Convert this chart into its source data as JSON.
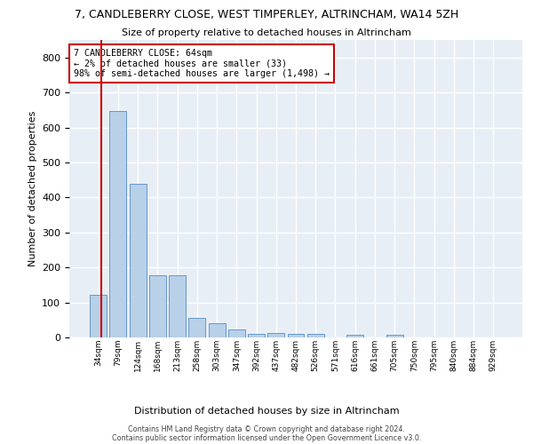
{
  "title": "7, CANDLEBERRY CLOSE, WEST TIMPERLEY, ALTRINCHAM, WA14 5ZH",
  "subtitle": "Size of property relative to detached houses in Altrincham",
  "xlabel": "Distribution of detached houses by size in Altrincham",
  "ylabel": "Number of detached properties",
  "bar_color": "#b8d0e8",
  "bar_edge_color": "#6699cc",
  "highlight_color": "#cc0000",
  "bg_color": "#e8eef5",
  "grid_color": "#ffffff",
  "categories": [
    "34sqm",
    "79sqm",
    "124sqm",
    "168sqm",
    "213sqm",
    "258sqm",
    "303sqm",
    "347sqm",
    "392sqm",
    "437sqm",
    "482sqm",
    "526sqm",
    "571sqm",
    "616sqm",
    "661sqm",
    "705sqm",
    "750sqm",
    "795sqm",
    "840sqm",
    "884sqm",
    "929sqm"
  ],
  "values": [
    122,
    647,
    440,
    178,
    178,
    57,
    40,
    22,
    11,
    13,
    11,
    9,
    0,
    8,
    0,
    8,
    0,
    0,
    0,
    0,
    0
  ],
  "annotation_line": "7 CANDLEBERRY CLOSE: 64sqm",
  "annotation_line2": "← 2% of detached houses are smaller (33)",
  "annotation_line3": "98% of semi-detached houses are larger (1,498) →",
  "ylim": [
    0,
    850
  ],
  "yticks": [
    0,
    100,
    200,
    300,
    400,
    500,
    600,
    700,
    800
  ],
  "footer_line1": "Contains HM Land Registry data © Crown copyright and database right 2024.",
  "footer_line2": "Contains public sector information licensed under the Open Government Licence v3.0.",
  "figsize": [
    6.0,
    5.0
  ],
  "dpi": 100
}
